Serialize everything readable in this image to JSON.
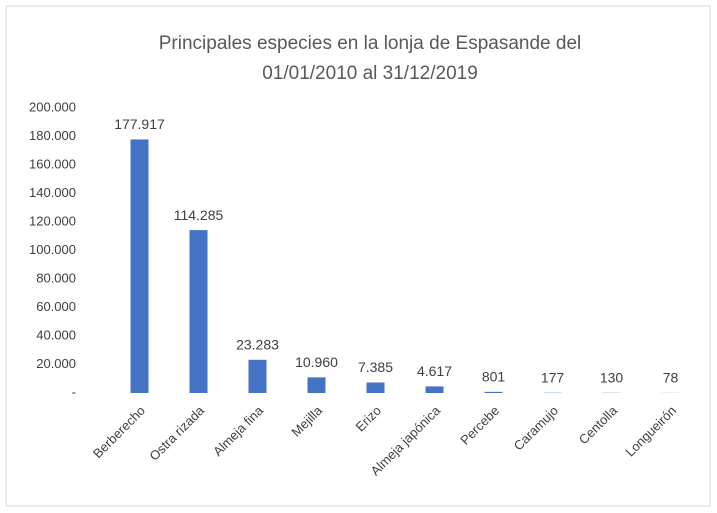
{
  "chart_data": {
    "type": "bar",
    "title": [
      "Principales especies en la lonja de Espasande del",
      "01/01/2010 al 31/12/2019"
    ],
    "categories": [
      "Berberecho",
      "Ostra rizada",
      "Almeja fina",
      "Mejilla",
      "Erizo",
      "Almeja japónica",
      "Percebe",
      "Caramujo",
      "Centolla",
      "Longueirón"
    ],
    "values": [
      177917,
      114285,
      23283,
      10960,
      7385,
      4617,
      801,
      177,
      130,
      78
    ],
    "value_labels": [
      "177.917",
      "114.285",
      "23.283",
      "10.960",
      "7.385",
      "4.617",
      "801",
      "177",
      "130",
      "78"
    ],
    "color": "#4472c4",
    "ylim": [
      0,
      200000
    ],
    "yticks": [
      {
        "value": 0,
        "label": "-"
      },
      {
        "value": 20000,
        "label": "20.000"
      },
      {
        "value": 40000,
        "label": "40.000"
      },
      {
        "value": 60000,
        "label": "60.000"
      },
      {
        "value": 80000,
        "label": "80.000"
      },
      {
        "value": 100000,
        "label": "100.000"
      },
      {
        "value": 120000,
        "label": "120.000"
      },
      {
        "value": 140000,
        "label": "140.000"
      },
      {
        "value": 160000,
        "label": "160.000"
      },
      {
        "value": 180000,
        "label": "180.000"
      },
      {
        "value": 200000,
        "label": "200.000"
      }
    ],
    "grid": false
  }
}
